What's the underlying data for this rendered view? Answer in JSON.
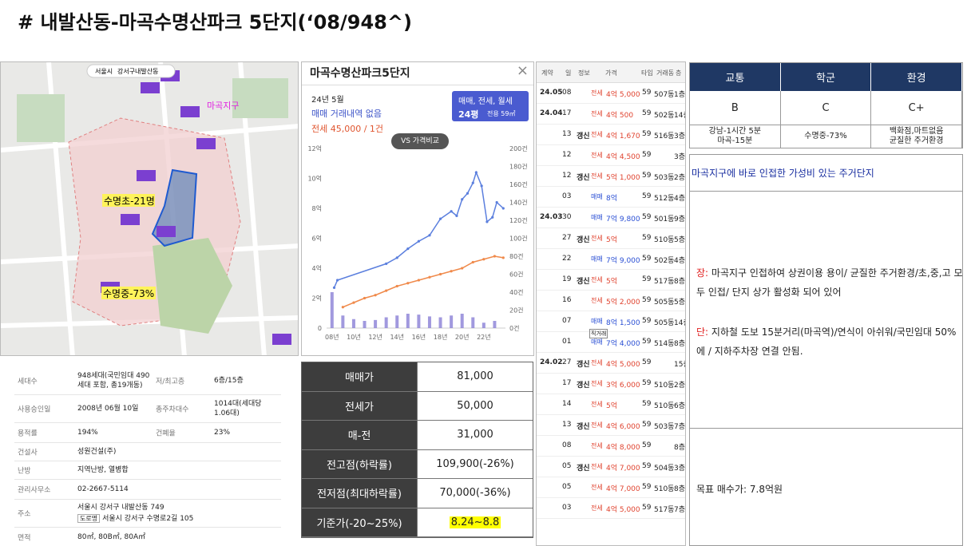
{
  "header": {
    "title": "# 내발산동-마곡수명산파크 5단지(‘08/948^)"
  },
  "map": {
    "chip": [
      "서울시",
      "강서구",
      "내발산동"
    ],
    "labels": {
      "district": "마곡지구",
      "elementary": "수명초-21명",
      "middle": "수명중-73%"
    }
  },
  "price_panel": {
    "title": "마곡수명산파크5단지",
    "month": "24년 5월",
    "sale": "매매 거래내역 없음",
    "jeonse": "전세 45,000 / 1건",
    "filter": "매매, 전세, 월세",
    "size": "24평",
    "area": "전용 59㎡",
    "compare": "VS 가격비교",
    "chart": {
      "type": "line",
      "xlim": [
        2007.5,
        2024
      ],
      "xticks": [
        {
          "value": 2008,
          "label": "08년"
        },
        {
          "value": 2010,
          "label": "10년"
        },
        {
          "value": 2012,
          "label": "12년"
        },
        {
          "value": 2014,
          "label": "14년"
        },
        {
          "value": 2016,
          "label": "16년"
        },
        {
          "value": 2018,
          "label": "18년"
        },
        {
          "value": 2020,
          "label": "20년"
        },
        {
          "value": 2022,
          "label": "22년"
        }
      ],
      "ylim": [
        0,
        12
      ],
      "yticks": [
        0,
        {
          "value": 2,
          "label": "2억"
        },
        {
          "value": 4,
          "label": "4억"
        },
        {
          "value": 6,
          "label": "6억"
        },
        {
          "value": 8,
          "label": "8억"
        },
        {
          "value": 10,
          "label": "10억"
        },
        {
          "value": 12,
          "label": "12억"
        }
      ],
      "y2lim": [
        0,
        200
      ],
      "y2ticks": [
        {
          "value": 0,
          "label": "0건"
        },
        {
          "value": 20,
          "label": "20건"
        },
        {
          "value": 40,
          "label": "40건"
        },
        {
          "value": 60,
          "label": "60건"
        },
        {
          "value": 80,
          "label": "80건"
        },
        {
          "value": 100,
          "label": "100건"
        },
        {
          "value": 120,
          "label": "120건"
        },
        {
          "value": 140,
          "label": "140건"
        },
        {
          "value": 160,
          "label": "160건"
        },
        {
          "value": 180,
          "label": "180건"
        },
        {
          "value": 200,
          "label": "200건"
        }
      ],
      "series": [
        {
          "color": "#5b7fde",
          "x": [
            2008.2,
            2008.5,
            2013,
            2014,
            2015,
            2016,
            2017,
            2018,
            2019,
            2019.5,
            2020,
            2020.5,
            2021,
            2021.3,
            2021.8,
            2022.3,
            2022.8,
            2023.2,
            2023.8
          ],
          "values": [
            2.7,
            3.2,
            4.3,
            4.7,
            5.3,
            5.8,
            6.2,
            7.3,
            7.8,
            7.5,
            8.6,
            9.0,
            9.7,
            10.4,
            9.5,
            7.1,
            7.4,
            8.4,
            8.0
          ]
        },
        {
          "color": "#f08a4b",
          "x": [
            2009,
            2010,
            2011,
            2012,
            2013,
            2014,
            2015,
            2016,
            2017,
            2018,
            2019,
            2020,
            2021,
            2022,
            2023,
            2023.8
          ],
          "values": [
            1.4,
            1.7,
            2.0,
            2.2,
            2.5,
            2.8,
            3.0,
            3.2,
            3.4,
            3.6,
            3.8,
            4.0,
            4.4,
            4.6,
            4.8,
            4.7
          ]
        },
        {
          "color": "#8a7fd6",
          "axis": "y2",
          "x": [
            2008,
            2009,
            2010,
            2011,
            2012,
            2013,
            2014,
            2015,
            2016,
            2017,
            2018,
            2019,
            2020,
            2021,
            2022,
            2023
          ],
          "values": [
            40,
            14,
            10,
            8,
            9,
            12,
            14,
            16,
            15,
            13,
            12,
            14,
            16,
            12,
            6,
            8
          ]
        }
      ]
    }
  },
  "info_table": {
    "rows": [
      [
        {
          "label": "세대수",
          "value": "948세대(국민임대 490세대 포함, 총19개동)"
        },
        {
          "label": "저/최고층",
          "value": "6층/15층"
        }
      ],
      [
        {
          "label": "사용승인일",
          "value": "2008년 06월 10일"
        },
        {
          "label": "총주차대수",
          "value": "1014대(세대당 1.06대)"
        }
      ],
      [
        {
          "label": "용적률",
          "value": "194%"
        },
        {
          "label": "건폐율",
          "value": "23%"
        }
      ],
      [
        {
          "label": "건설사",
          "value": "성원건설(주)"
        }
      ],
      [
        {
          "label": "난방",
          "value": "지역난방, 열병합"
        }
      ],
      [
        {
          "label": "관리사무소",
          "value": "02-2667-5114"
        }
      ],
      [
        {
          "label": "주소",
          "value": "서울시 강서구 내발산동 749",
          "badge": "도로명",
          "road": "서울시 강서구 수명로2길 105"
        }
      ],
      [
        {
          "label": "면적",
          "value": "80㎡, 80B㎡, 80A㎡"
        }
      ]
    ]
  },
  "price_table": {
    "rows": [
      {
        "label": "매매가",
        "value": "81,000"
      },
      {
        "label": "전세가",
        "value": "50,000"
      },
      {
        "label": "매-전",
        "value": "31,000"
      },
      {
        "label": "전고점(하락률)",
        "value": "109,900(-26%)"
      },
      {
        "label": "전저점(최대하락률)",
        "value": "70,000(-36%)"
      },
      {
        "label": "기준가(-20~25%)",
        "value": "8.24~8.8"
      }
    ]
  },
  "trades": {
    "header": [
      "계약",
      "일",
      "정보",
      "가격",
      "타입",
      "거래동",
      "층"
    ],
    "rows": [
      {
        "month": "24.05",
        "day": "08",
        "kind": "전세",
        "price": "4억 5,000",
        "type": "59",
        "dong": "507동",
        "floor": "1층"
      },
      {
        "month": "24.04",
        "day": "17",
        "kind": "전세",
        "price": "4억 500",
        "type": "59",
        "dong": "502동",
        "floor": "14층"
      },
      {
        "day": "13",
        "info": "갱신",
        "kind": "전세",
        "price": "4억 1,670",
        "type": "59",
        "dong": "516동",
        "floor": "3층"
      },
      {
        "day": "12",
        "kind": "전세",
        "price": "4억 4,500",
        "type": "59",
        "floor": "3층"
      },
      {
        "day": "12",
        "info": "갱신",
        "kind": "전세",
        "price": "5억 1,000",
        "type": "59",
        "dong": "503동",
        "floor": "2층"
      },
      {
        "day": "03",
        "kind": "매매",
        "price": "8억",
        "type": "59",
        "dong": "512동",
        "floor": "4층"
      },
      {
        "month": "24.03",
        "day": "30",
        "kind": "매매",
        "price": "7억 9,800",
        "type": "59",
        "dong": "501동",
        "floor": "9층"
      },
      {
        "day": "27",
        "info": "갱신",
        "kind": "전세",
        "price": "5억",
        "type": "59",
        "dong": "510동",
        "floor": "5층"
      },
      {
        "day": "22",
        "kind": "매매",
        "price": "7억 9,000",
        "type": "59",
        "dong": "502동",
        "floor": "4층"
      },
      {
        "day": "19",
        "info": "갱신",
        "kind": "전세",
        "price": "5억",
        "type": "59",
        "dong": "517동",
        "floor": "8층"
      },
      {
        "day": "16",
        "kind": "전세",
        "price": "5억 2,000",
        "type": "59",
        "dong": "505동",
        "floor": "5층"
      },
      {
        "day": "07",
        "kind": "매매",
        "price": "8억 1,500",
        "type": "59",
        "dong": "505동",
        "floor": "14층"
      },
      {
        "day": "01",
        "badge": "직거래",
        "kind": "매매",
        "price": "7억 4,000",
        "type": "59",
        "dong": "514동",
        "floor": "8층"
      },
      {
        "month": "24.02",
        "day": "27",
        "info": "갱신",
        "kind": "전세",
        "price": "4억 5,000",
        "type": "59",
        "floor": "15층"
      },
      {
        "day": "17",
        "info": "갱신",
        "kind": "전세",
        "price": "3억 6,000",
        "type": "59",
        "dong": "510동",
        "floor": "2층"
      },
      {
        "day": "14",
        "kind": "전세",
        "price": "5억",
        "type": "59",
        "dong": "510동",
        "floor": "6층"
      },
      {
        "day": "13",
        "info": "갱신",
        "kind": "전세",
        "price": "4억 6,000",
        "type": "59",
        "dong": "503동",
        "floor": "7층"
      },
      {
        "day": "08",
        "kind": "전세",
        "price": "4억 8,000",
        "type": "59",
        "floor": "8층"
      },
      {
        "day": "05",
        "info": "갱신",
        "kind": "전세",
        "price": "4억 7,000",
        "type": "59",
        "dong": "504동",
        "floor": "3층"
      },
      {
        "day": "05",
        "kind": "전세",
        "price": "4억 7,000",
        "type": "59",
        "dong": "510동",
        "floor": "8층"
      },
      {
        "day": "03",
        "kind": "전세",
        "price": "4억 5,000",
        "type": "59",
        "dong": "517동",
        "floor": "7층"
      }
    ]
  },
  "summary": {
    "header": [
      "교통",
      "학군",
      "환경"
    ],
    "grades": [
      "B",
      "C",
      "C+"
    ],
    "notes": [
      "강남-1시간 5분\n마곡-15분",
      "수명중-73%",
      "백화점,마트없음\n균질한 주거환경"
    ],
    "headline": "마곡지구에 바로 인접한 가성비 있는 주거단지",
    "pros_tag": "장:",
    "pros": " 마곡지구 인접하여 상권이용 용이/ 균질한 주거환경/초,중,고 모두 인접/ 단지 상가 활성화 되어 있어",
    "cons_tag": "단:",
    "cons": " 지하철 도보 15분거리(마곡역)/연식이 아쉬워/국민임대 50%에 / 지하주차장 연결 안됨.",
    "target": "목표 매수가: 7.8억원"
  }
}
